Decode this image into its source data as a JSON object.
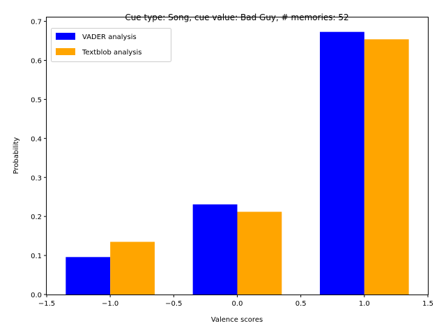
{
  "chart_data": {
    "type": "bar",
    "title": "Cue type: Song, cue value: Bad Guy, # memories: 52",
    "xlabel": "Valence scores",
    "ylabel": "Probability",
    "x": [
      -1,
      0,
      1
    ],
    "bar_width": 0.35,
    "xlim": [
      -1.5,
      1.5
    ],
    "ylim": [
      0,
      0.71
    ],
    "xticks": [
      -1.5,
      -1.0,
      -0.5,
      0.0,
      0.5,
      1.0,
      1.5
    ],
    "xtick_labels": [
      "−1.5",
      "−1.0",
      "−0.5",
      "0.0",
      "0.5",
      "1.0",
      "1.5"
    ],
    "yticks": [
      0,
      0.1,
      0.2,
      0.3,
      0.4,
      0.5,
      0.6,
      0.7
    ],
    "ytick_labels": [
      "0.0",
      "0.1",
      "0.2",
      "0.3",
      "0.4",
      "0.5",
      "0.6",
      "0.7"
    ],
    "grid": false,
    "legend_position": "top-left",
    "series": [
      {
        "name": "VADER analysis",
        "color": "#0000ff",
        "offset": -0.175,
        "values": [
          0.096,
          0.231,
          0.673
        ]
      },
      {
        "name": "Textblob analysis",
        "color": "#ffa500",
        "offset": 0.175,
        "values": [
          0.135,
          0.212,
          0.654
        ]
      }
    ]
  }
}
